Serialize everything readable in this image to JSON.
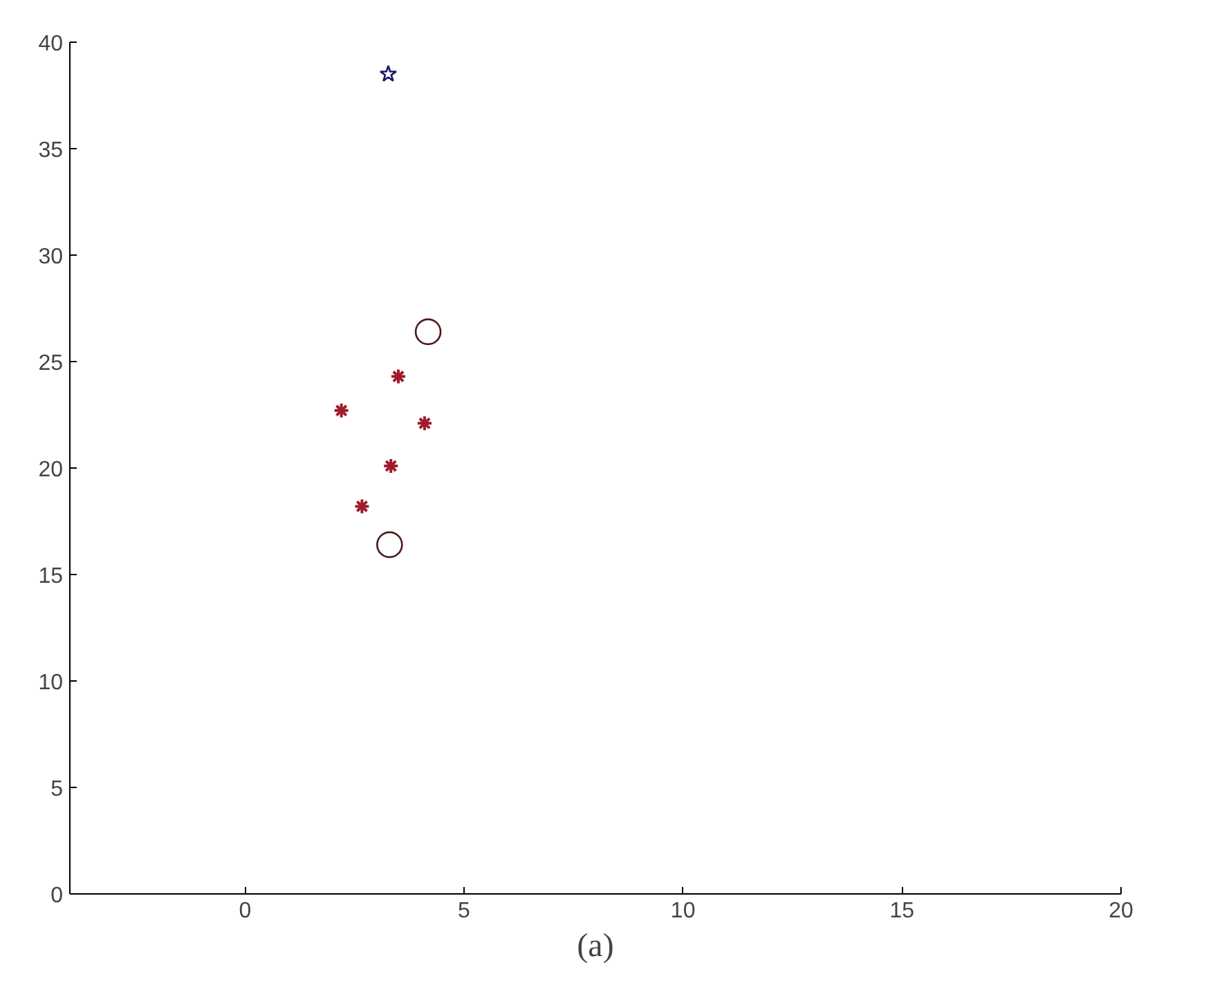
{
  "chart_data": {
    "type": "scatter",
    "xlabel": "(a)",
    "xlim": [
      -4,
      20
    ],
    "ylim": [
      0,
      40
    ],
    "xticks": [
      0,
      5,
      10,
      15,
      20
    ],
    "yticks": [
      0,
      5,
      10,
      15,
      20,
      25,
      30,
      35,
      40
    ],
    "grid": false,
    "series": [
      {
        "color": "#1a1a6a",
        "marker": "star",
        "x": [
          3.27
        ],
        "values": [
          38.5
        ]
      },
      {
        "color": "#4a1a1a",
        "marker": "circle",
        "x": [
          4.18,
          3.3
        ],
        "values": [
          26.4,
          16.4
        ]
      },
      {
        "color": "#a01c2c",
        "marker": "cross",
        "x": [
          2.2,
          3.5,
          4.1,
          3.33,
          2.67
        ],
        "values": [
          22.7,
          24.3,
          22.1,
          20.1,
          18.2
        ]
      }
    ]
  }
}
